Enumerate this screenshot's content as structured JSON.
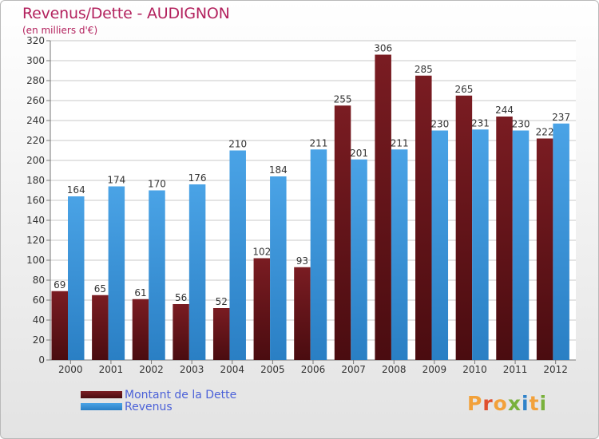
{
  "header": {
    "title": "Revenus/Dette - AUDIGNON",
    "subtitle": "(en milliers d'€)"
  },
  "legend": {
    "debt_label": "Montant de la Dette",
    "revenue_label": "Revenus"
  },
  "logo": {
    "text": "Proxiti"
  },
  "colors": {
    "debt": "#7a1c22",
    "debt_dark": "#4a0c10",
    "revenue": "#4aa3e6",
    "revenue_dark": "#2a7fc4",
    "title": "#b3225e",
    "legend_text": "#4b61d8"
  },
  "chart_data": {
    "type": "bar",
    "title": "Revenus/Dette - AUDIGNON",
    "ylabel": "(en milliers d'€)",
    "xlabel": "",
    "categories": [
      "2000",
      "2001",
      "2002",
      "2003",
      "2004",
      "2005",
      "2006",
      "2007",
      "2008",
      "2009",
      "2010",
      "2011",
      "2012"
    ],
    "series": [
      {
        "name": "Montant de la Dette",
        "values": [
          69,
          65,
          61,
          56,
          52,
          102,
          93,
          255,
          306,
          285,
          265,
          244,
          222
        ]
      },
      {
        "name": "Revenus",
        "values": [
          164,
          174,
          170,
          176,
          210,
          184,
          211,
          201,
          211,
          230,
          231,
          230,
          237
        ]
      }
    ],
    "ylim": [
      0,
      320
    ],
    "ytick_step": 20,
    "grid": true,
    "legend_position": "bottom-left"
  }
}
